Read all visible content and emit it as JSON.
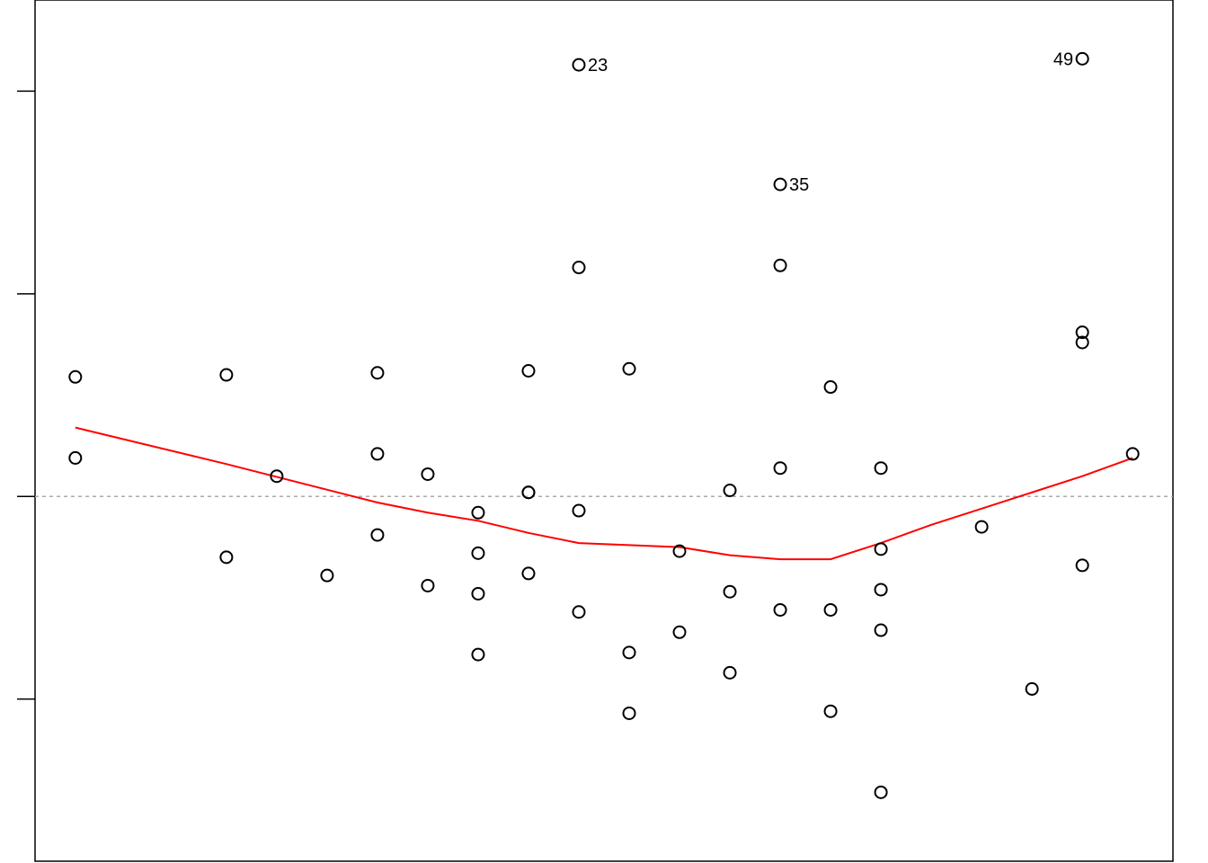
{
  "chart_data": {
    "type": "scatter",
    "title": "",
    "xlabel": "",
    "ylabel": "",
    "xlim": [
      0.2,
      22.8
    ],
    "ylim": [
      -1.8,
      2.45
    ],
    "grid": false,
    "legend": "none",
    "y_ticks": [
      -1,
      0,
      1,
      2
    ],
    "reference_line": {
      "y": 0,
      "color": "#aaaaaa",
      "style": "dotted"
    },
    "colors": {
      "points": "#000000",
      "smooth": "#ff0000",
      "reference": "#aaaaaa"
    },
    "points": [
      {
        "x": 1,
        "y": 0.59
      },
      {
        "x": 1,
        "y": 0.19
      },
      {
        "x": 4,
        "y": 0.6
      },
      {
        "x": 4,
        "y": -0.3
      },
      {
        "x": 5,
        "y": 0.1
      },
      {
        "x": 6,
        "y": -0.39
      },
      {
        "x": 7,
        "y": 0.61
      },
      {
        "x": 7,
        "y": 0.21
      },
      {
        "x": 7,
        "y": -0.19
      },
      {
        "x": 8,
        "y": 0.11
      },
      {
        "x": 8,
        "y": -0.44
      },
      {
        "x": 9,
        "y": -0.08
      },
      {
        "x": 9,
        "y": -0.28
      },
      {
        "x": 9,
        "y": -0.48
      },
      {
        "x": 9,
        "y": -0.78
      },
      {
        "x": 10,
        "y": 0.62
      },
      {
        "x": 10,
        "y": 0.02
      },
      {
        "x": 10,
        "y": 0.02
      },
      {
        "x": 10,
        "y": -0.38
      },
      {
        "x": 11,
        "y": 2.13,
        "label": "23"
      },
      {
        "x": 11,
        "y": 1.13
      },
      {
        "x": 11,
        "y": -0.07
      },
      {
        "x": 11,
        "y": -0.57
      },
      {
        "x": 12,
        "y": 0.63
      },
      {
        "x": 12,
        "y": -0.77
      },
      {
        "x": 12,
        "y": -1.07
      },
      {
        "x": 13,
        "y": -0.27
      },
      {
        "x": 13,
        "y": -0.67
      },
      {
        "x": 14,
        "y": 0.03
      },
      {
        "x": 14,
        "y": -0.47
      },
      {
        "x": 14,
        "y": -0.87
      },
      {
        "x": 15,
        "y": 1.54,
        "label": "35"
      },
      {
        "x": 15,
        "y": 1.14
      },
      {
        "x": 15,
        "y": 0.14
      },
      {
        "x": 15,
        "y": -0.56
      },
      {
        "x": 16,
        "y": 0.54
      },
      {
        "x": 16,
        "y": -0.56
      },
      {
        "x": 16,
        "y": -1.06
      },
      {
        "x": 17,
        "y": 0.14
      },
      {
        "x": 17,
        "y": -0.26
      },
      {
        "x": 17,
        "y": -0.46
      },
      {
        "x": 17,
        "y": -0.66
      },
      {
        "x": 17,
        "y": -1.46
      },
      {
        "x": 19,
        "y": -0.15
      },
      {
        "x": 20,
        "y": -0.95
      },
      {
        "x": 21,
        "y": 2.16,
        "label": "49"
      },
      {
        "x": 21,
        "y": 0.81
      },
      {
        "x": 21,
        "y": 0.76
      },
      {
        "x": 21,
        "y": -0.34
      },
      {
        "x": 22,
        "y": 0.21
      }
    ],
    "smooth_line": {
      "x": [
        1,
        4,
        7,
        8,
        9,
        10,
        11,
        12,
        13,
        14,
        15,
        16,
        17,
        18,
        19,
        20,
        21,
        22
      ],
      "y": [
        0.34,
        0.16,
        -0.03,
        -0.08,
        -0.12,
        -0.18,
        -0.23,
        -0.24,
        -0.25,
        -0.29,
        -0.31,
        -0.31,
        -0.23,
        -0.14,
        -0.06,
        0.02,
        0.1,
        0.19
      ]
    }
  }
}
